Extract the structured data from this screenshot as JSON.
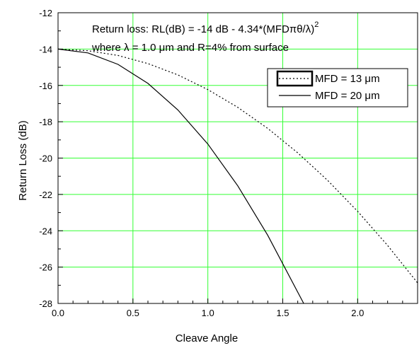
{
  "chart_data": {
    "type": "line",
    "title": "",
    "xlabel": "Cleave Angle",
    "ylabel": "Return Loss (dB)",
    "xlim": [
      0.0,
      2.4
    ],
    "ylim": [
      -28,
      -12
    ],
    "x_ticks": [
      "0.0",
      "0.5",
      "1.0",
      "1.5",
      "2.0"
    ],
    "y_ticks": [
      "-12",
      "-14",
      "-16",
      "-18",
      "-20",
      "-22",
      "-24",
      "-26",
      "-28"
    ],
    "grid": true,
    "legend_position": "top-right",
    "annotation": {
      "line1_prefix": "Return loss: RL(dB) = -14 dB - 4.34*(MFD",
      "line1_greek": "πθ/λ",
      "line1_suffix": ")",
      "line1_superscript": "2",
      "line2_prefix": "where ",
      "line2_greek_lambda": "λ",
      "line2_mid": " = 1.0 ",
      "line2_greek_mu": "μ",
      "line2_suffix": "m and R=4% from surface"
    },
    "series": [
      {
        "name": "MFD = 13 μm",
        "style": "dotted",
        "x": [
          0.0,
          0.2,
          0.4,
          0.6,
          0.8,
          1.0,
          1.2,
          1.4,
          1.6,
          1.8,
          2.0,
          2.2,
          2.4
        ],
        "y": [
          -14.0,
          -14.09,
          -14.35,
          -14.8,
          -15.42,
          -16.23,
          -17.21,
          -18.37,
          -19.71,
          -21.23,
          -22.93,
          -24.81,
          -26.87
        ]
      },
      {
        "name": "MFD = 20 μm",
        "style": "solid",
        "x": [
          0.0,
          0.2,
          0.4,
          0.6,
          0.8,
          1.0,
          1.2,
          1.4,
          1.6,
          1.64
        ],
        "y": [
          -14.0,
          -14.21,
          -14.84,
          -15.89,
          -17.35,
          -19.23,
          -21.53,
          -24.25,
          -27.38,
          -28.0
        ]
      }
    ],
    "colors": {
      "grid": "#33ff33",
      "lines": "#000000",
      "background": "#ffffff"
    }
  }
}
